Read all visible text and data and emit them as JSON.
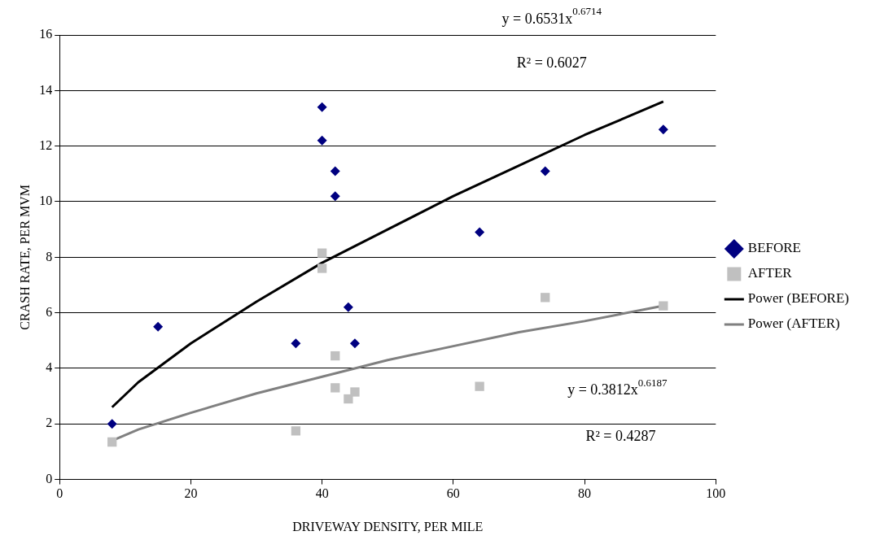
{
  "chart_data": {
    "type": "scatter",
    "xlabel": "DRIVEWAY DENSITY, PER MILE",
    "ylabel": "CRASH RATE, PER MVM",
    "xlim": [
      0,
      100
    ],
    "xticks": [
      0,
      20,
      40,
      60,
      80,
      100
    ],
    "ylim": [
      0,
      16
    ],
    "yticks": [
      0,
      2,
      4,
      6,
      8,
      10,
      12,
      14,
      16
    ],
    "grid": "y",
    "legend": "right",
    "annotations": [
      "y = 0.6531x$^{0.6714}$",
      "R² = 0.6027",
      "y = 0.3812x$^{0.6187}$",
      "R² = 0.4287"
    ],
    "series": [
      {
        "name": "BEFORE",
        "marker": "diamond",
        "color": "#000080",
        "x": [
          8,
          15,
          36,
          40,
          40,
          42,
          42,
          44,
          45,
          64,
          74,
          92
        ],
        "values": [
          2.0,
          5.5,
          4.9,
          13.4,
          12.2,
          11.1,
          10.2,
          6.2,
          4.9,
          8.9,
          11.1,
          12.6
        ]
      },
      {
        "name": "AFTER",
        "marker": "square",
        "color": "#c0c0c0",
        "x": [
          8,
          36,
          40,
          40,
          42,
          42,
          44,
          45,
          64,
          74,
          92
        ],
        "values": [
          1.35,
          1.75,
          8.15,
          7.6,
          4.45,
          3.3,
          2.9,
          3.15,
          3.35,
          6.55,
          6.25
        ]
      },
      {
        "name": "Power (BEFORE)",
        "type": "line",
        "marker": "none",
        "color": "#000000",
        "x": [
          8,
          12,
          20,
          30,
          40,
          50,
          60,
          70,
          80,
          92
        ],
        "values": [
          2.6,
          3.5,
          4.9,
          6.4,
          7.8,
          9.0,
          10.2,
          11.3,
          12.4,
          13.6
        ]
      },
      {
        "name": "Power (AFTER)",
        "type": "line",
        "marker": "none",
        "color": "#808080",
        "x": [
          8,
          12,
          20,
          30,
          40,
          50,
          60,
          70,
          80,
          92
        ],
        "values": [
          1.4,
          1.8,
          2.4,
          3.1,
          3.7,
          4.3,
          4.8,
          5.3,
          5.7,
          6.25
        ]
      }
    ]
  }
}
